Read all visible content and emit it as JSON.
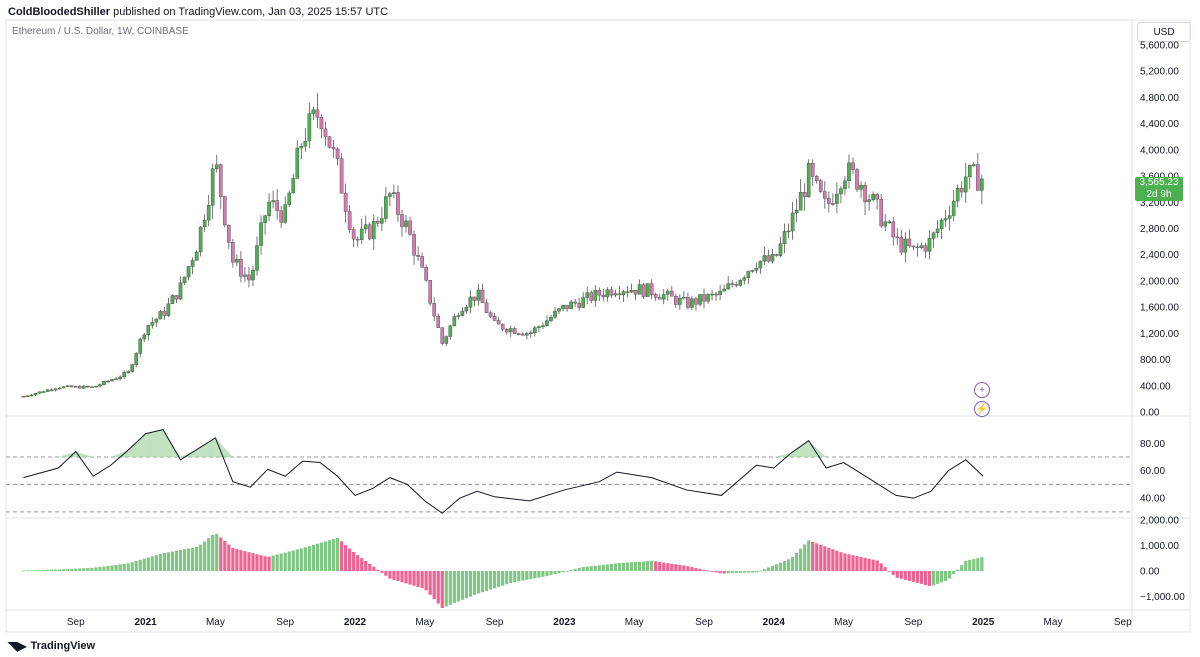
{
  "header": {
    "author": "ColdBloodedShiller",
    "text": "published on TradingView.com, Jan 03, 2025 15:57 UTC"
  },
  "symbol_line": "Ethereum / U.S. Dollar, 1W, COINBASE",
  "currency_label": "USD",
  "footer_brand": "TradingView",
  "price_tag": {
    "price": "3,565.23",
    "countdown": "2d 9h",
    "color": "#4caf50"
  },
  "colors": {
    "up": "#4caf50",
    "down": "#d17bae",
    "hist_up": "#81c784",
    "hist_down": "#f06292"
  },
  "chart_data": [
    {
      "type": "candlestick",
      "title": "Ethereum / U.S. Dollar, 1W, COINBASE",
      "y_ticks": [
        "5,600.00",
        "5,200.00",
        "4,800.00",
        "4,400.00",
        "4,000.00",
        "3,600.00",
        "3,200.00",
        "2,800.00",
        "2,400.00",
        "2,000.00",
        "1,600.00",
        "1,200.00",
        "800.00",
        "400.00",
        "0.00"
      ],
      "ylim": [
        0,
        5600
      ],
      "x_ticks": [
        "Sep",
        "2021",
        "May",
        "Sep",
        "2022",
        "May",
        "Sep",
        "2023",
        "May",
        "Sep",
        "2024",
        "May",
        "Sep",
        "2025",
        "May",
        "Sep"
      ],
      "close_path": [
        {
          "x": "2020-06",
          "y": 240
        },
        {
          "x": "2020-08",
          "y": 380
        },
        {
          "x": "2020-10",
          "y": 380
        },
        {
          "x": "2020-12",
          "y": 600
        },
        {
          "x": "2021-01",
          "y": 1300
        },
        {
          "x": "2021-02",
          "y": 1500
        },
        {
          "x": "2021-03",
          "y": 1900
        },
        {
          "x": "2021-04",
          "y": 2600
        },
        {
          "x": "2021-05",
          "y": 3800
        },
        {
          "x": "2021-06",
          "y": 2300
        },
        {
          "x": "2021-07",
          "y": 2000
        },
        {
          "x": "2021-08",
          "y": 3200
        },
        {
          "x": "2021-09",
          "y": 3000
        },
        {
          "x": "2021-10",
          "y": 4200
        },
        {
          "x": "2021-11",
          "y": 4600
        },
        {
          "x": "2021-12",
          "y": 3700
        },
        {
          "x": "2022-01",
          "y": 2600
        },
        {
          "x": "2022-02",
          "y": 2800
        },
        {
          "x": "2022-03",
          "y": 3300
        },
        {
          "x": "2022-04",
          "y": 2800
        },
        {
          "x": "2022-05",
          "y": 2000
        },
        {
          "x": "2022-06",
          "y": 1050
        },
        {
          "x": "2022-07",
          "y": 1600
        },
        {
          "x": "2022-08",
          "y": 1800
        },
        {
          "x": "2022-09",
          "y": 1330
        },
        {
          "x": "2022-11",
          "y": 1200
        },
        {
          "x": "2023-01",
          "y": 1600
        },
        {
          "x": "2023-03",
          "y": 1800
        },
        {
          "x": "2023-04",
          "y": 1900
        },
        {
          "x": "2023-06",
          "y": 1850
        },
        {
          "x": "2023-08",
          "y": 1650
        },
        {
          "x": "2023-10",
          "y": 1800
        },
        {
          "x": "2023-12",
          "y": 2300
        },
        {
          "x": "2024-01",
          "y": 2300
        },
        {
          "x": "2024-02",
          "y": 2900
        },
        {
          "x": "2024-03",
          "y": 3600
        },
        {
          "x": "2024-04",
          "y": 3100
        },
        {
          "x": "2024-05",
          "y": 3700
        },
        {
          "x": "2024-06",
          "y": 3500
        },
        {
          "x": "2024-08",
          "y": 2600
        },
        {
          "x": "2024-09",
          "y": 2450
        },
        {
          "x": "2024-10",
          "y": 2600
        },
        {
          "x": "2024-11",
          "y": 3100
        },
        {
          "x": "2024-12",
          "y": 3600
        },
        {
          "x": "2025-01",
          "y": 3565
        }
      ]
    },
    {
      "type": "line",
      "title": "",
      "y_ticks": [
        "80.00",
        "60.00",
        "40.00"
      ],
      "ylim": [
        27,
        97
      ],
      "bands": [
        70,
        50,
        30
      ],
      "points": [
        {
          "x": "2020-06",
          "y": 55
        },
        {
          "x": "2020-08",
          "y": 62
        },
        {
          "x": "2020-09",
          "y": 74
        },
        {
          "x": "2020-10",
          "y": 56
        },
        {
          "x": "2020-11",
          "y": 64
        },
        {
          "x": "2020-12",
          "y": 75
        },
        {
          "x": "2021-01",
          "y": 87
        },
        {
          "x": "2021-02",
          "y": 90
        },
        {
          "x": "2021-03",
          "y": 68
        },
        {
          "x": "2021-04",
          "y": 76
        },
        {
          "x": "2021-05",
          "y": 84
        },
        {
          "x": "2021-06",
          "y": 52
        },
        {
          "x": "2021-07",
          "y": 48
        },
        {
          "x": "2021-08",
          "y": 61
        },
        {
          "x": "2021-09",
          "y": 56
        },
        {
          "x": "2021-10",
          "y": 67
        },
        {
          "x": "2021-11",
          "y": 66
        },
        {
          "x": "2021-12",
          "y": 56
        },
        {
          "x": "2022-01",
          "y": 42
        },
        {
          "x": "2022-02",
          "y": 47
        },
        {
          "x": "2022-03",
          "y": 55
        },
        {
          "x": "2022-04",
          "y": 50
        },
        {
          "x": "2022-05",
          "y": 38
        },
        {
          "x": "2022-06",
          "y": 29
        },
        {
          "x": "2022-07",
          "y": 40
        },
        {
          "x": "2022-08",
          "y": 45
        },
        {
          "x": "2022-09",
          "y": 41
        },
        {
          "x": "2022-11",
          "y": 38
        },
        {
          "x": "2023-01",
          "y": 46
        },
        {
          "x": "2023-03",
          "y": 52
        },
        {
          "x": "2023-04",
          "y": 59
        },
        {
          "x": "2023-06",
          "y": 55
        },
        {
          "x": "2023-08",
          "y": 46
        },
        {
          "x": "2023-10",
          "y": 42
        },
        {
          "x": "2023-12",
          "y": 64
        },
        {
          "x": "2024-01",
          "y": 62
        },
        {
          "x": "2024-02",
          "y": 73
        },
        {
          "x": "2024-03",
          "y": 82
        },
        {
          "x": "2024-04",
          "y": 62
        },
        {
          "x": "2024-05",
          "y": 66
        },
        {
          "x": "2024-06",
          "y": 58
        },
        {
          "x": "2024-08",
          "y": 42
        },
        {
          "x": "2024-09",
          "y": 40
        },
        {
          "x": "2024-10",
          "y": 45
        },
        {
          "x": "2024-11",
          "y": 60
        },
        {
          "x": "2024-12",
          "y": 68
        },
        {
          "x": "2025-01",
          "y": 56
        }
      ]
    },
    {
      "type": "bar",
      "title": "",
      "y_ticks": [
        "2,000.00",
        "1,000.00",
        "0.00",
        "−1,000.00"
      ],
      "ylim": [
        -1450,
        2000
      ],
      "x": [
        "2020-06",
        "2020-08",
        "2020-10",
        "2020-12",
        "2021-02",
        "2021-04",
        "2021-05",
        "2021-06",
        "2021-08",
        "2021-10",
        "2021-12",
        "2022-01",
        "2022-03",
        "2022-05",
        "2022-06",
        "2022-08",
        "2022-10",
        "2022-12",
        "2023-02",
        "2023-04",
        "2023-06",
        "2023-08",
        "2023-10",
        "2023-12",
        "2024-02",
        "2024-03",
        "2024-05",
        "2024-07",
        "2024-08",
        "2024-10",
        "2024-11",
        "2024-12",
        "2025-01"
      ],
      "values": [
        20,
        60,
        130,
        300,
        700,
        950,
        1500,
        900,
        550,
        900,
        1300,
        700,
        -300,
        -700,
        -1450,
        -900,
        -450,
        -200,
        150,
        300,
        400,
        200,
        -100,
        -50,
        500,
        1200,
        700,
        400,
        -250,
        -600,
        -350,
        400,
        550
      ]
    }
  ]
}
